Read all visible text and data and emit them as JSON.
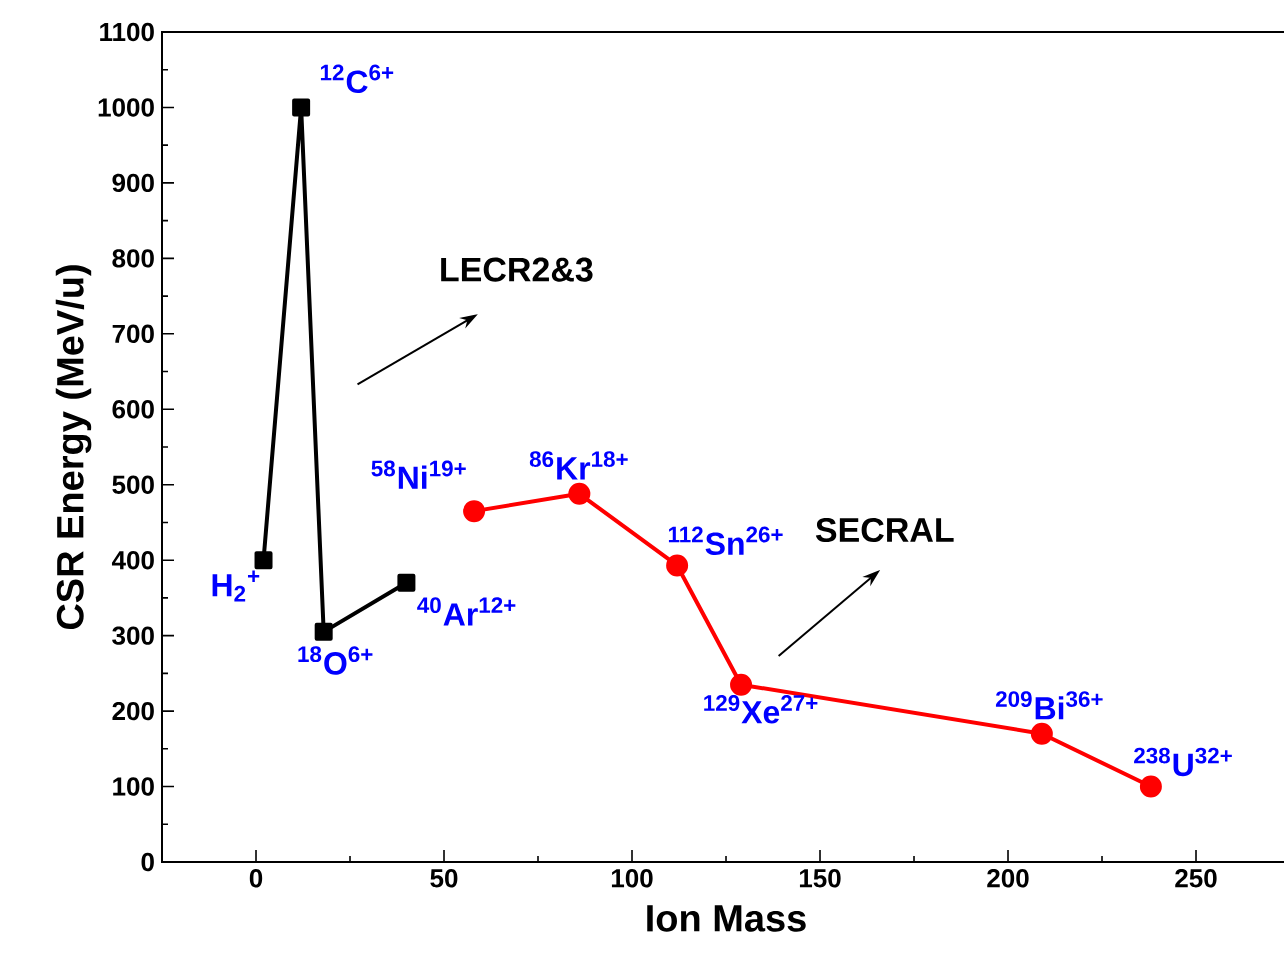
{
  "chart_data": {
    "type": "line",
    "xlabel": "Ion Mass",
    "ylabel": "CSR Energy (MeV/u)",
    "xlim": [
      -25,
      275
    ],
    "xticks": [
      0,
      50,
      100,
      150,
      200,
      250
    ],
    "ylim": [
      0,
      1100
    ],
    "yticks": [
      0,
      100,
      200,
      300,
      400,
      500,
      600,
      700,
      800,
      900,
      1000,
      1100
    ],
    "grid": false,
    "series": [
      {
        "color": "#000000",
        "marker": "square",
        "x": [
          2,
          12,
          18,
          40
        ],
        "values": [
          400,
          1000,
          305,
          370
        ]
      },
      {
        "color": "#ff0000",
        "marker": "circle",
        "x": [
          58,
          86,
          112,
          129,
          209,
          238
        ],
        "values": [
          465,
          488,
          393,
          235,
          170,
          100
        ]
      }
    ],
    "annotations": [
      {
        "text": "H$_{2}$$^{+}$",
        "x": 2,
        "y": 400
      },
      {
        "text": "$^{12}$C$^{6+}$",
        "x": 12,
        "y": 1000
      },
      {
        "text": "$^{18}$O$^{6+}$",
        "x": 18,
        "y": 305
      },
      {
        "text": "$^{40}$Ar$^{12+}$",
        "x": 40,
        "y": 370
      },
      {
        "text": "$^{58}$Ni$^{19+}$",
        "x": 58,
        "y": 465
      },
      {
        "text": "$^{86}$Kr$^{18+}$",
        "x": 86,
        "y": 488
      },
      {
        "text": "$^{112}$Sn$^{26+}$",
        "x": 112,
        "y": 393
      },
      {
        "text": "$^{129}$Xe$^{27+}$",
        "x": 129,
        "y": 235
      },
      {
        "text": "$^{209}$Bi$^{36+}$",
        "x": 209,
        "y": 170
      },
      {
        "text": "$^{238}$U$^{32+}$",
        "x": 238,
        "y": 100
      },
      "LECR2&3",
      "SECRAL"
    ]
  }
}
